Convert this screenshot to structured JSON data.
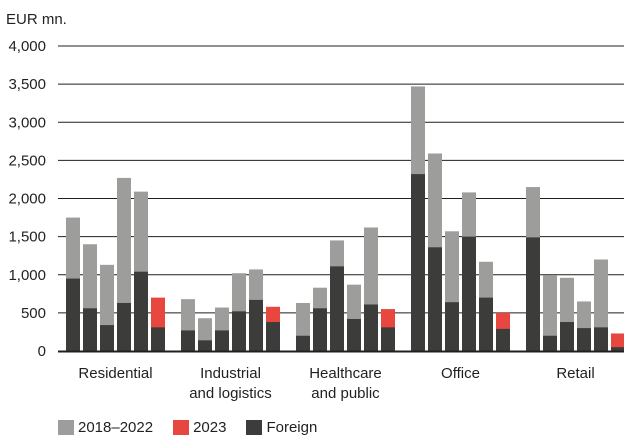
{
  "chart_data": {
    "type": "bar",
    "ylabel": "EUR mn.",
    "ylim": [
      0,
      4000
    ],
    "yticks": [
      "0",
      "500",
      "1,000",
      "1,500",
      "2,000",
      "2,500",
      "3,000",
      "3,500",
      "4,000"
    ],
    "ytick_values": [
      0,
      500,
      1000,
      1500,
      2000,
      2500,
      3000,
      3500,
      4000
    ],
    "grid": true,
    "legend_position": "bottom",
    "colors": {
      "total": "#9d9d9c",
      "highlight": "#e8473f",
      "foreign": "#3c3c3b",
      "axis": "#231f20"
    },
    "series": [
      {
        "name": "2018–2022",
        "role": "total"
      },
      {
        "name": "2023",
        "role": "highlight"
      },
      {
        "name": "Foreign",
        "role": "foreign"
      }
    ],
    "groups": [
      {
        "label": [
          "Residential"
        ],
        "bars": [
          {
            "year": 2018,
            "total": 1750,
            "foreign": 950
          },
          {
            "year": 2019,
            "total": 1400,
            "foreign": 560
          },
          {
            "year": 2020,
            "total": 1130,
            "foreign": 340
          },
          {
            "year": 2021,
            "total": 2270,
            "foreign": 630
          },
          {
            "year": 2022,
            "total": 2090,
            "foreign": 1040
          },
          {
            "year": 2023,
            "total": 700,
            "foreign": 310
          }
        ]
      },
      {
        "label": [
          "Industrial",
          "and logistics"
        ],
        "bars": [
          {
            "year": 2018,
            "total": 680,
            "foreign": 270
          },
          {
            "year": 2019,
            "total": 430,
            "foreign": 140
          },
          {
            "year": 2020,
            "total": 570,
            "foreign": 270
          },
          {
            "year": 2021,
            "total": 1020,
            "foreign": 520
          },
          {
            "year": 2022,
            "total": 1070,
            "foreign": 670
          },
          {
            "year": 2023,
            "total": 580,
            "foreign": 380
          }
        ]
      },
      {
        "label": [
          "Healthcare",
          "and public"
        ],
        "bars": [
          {
            "year": 2018,
            "total": 630,
            "foreign": 200
          },
          {
            "year": 2019,
            "total": 830,
            "foreign": 560
          },
          {
            "year": 2020,
            "total": 1450,
            "foreign": 1110
          },
          {
            "year": 2021,
            "total": 870,
            "foreign": 420
          },
          {
            "year": 2022,
            "total": 1620,
            "foreign": 610
          },
          {
            "year": 2023,
            "total": 550,
            "foreign": 310
          }
        ]
      },
      {
        "label": [
          "Office"
        ],
        "bars": [
          {
            "year": 2018,
            "total": 3470,
            "foreign": 2320
          },
          {
            "year": 2019,
            "total": 2590,
            "foreign": 1360
          },
          {
            "year": 2020,
            "total": 1570,
            "foreign": 640
          },
          {
            "year": 2021,
            "total": 2080,
            "foreign": 1500
          },
          {
            "year": 2022,
            "total": 1170,
            "foreign": 700
          },
          {
            "year": 2023,
            "total": 500,
            "foreign": 290
          }
        ]
      },
      {
        "label": [
          "Retail"
        ],
        "bars": [
          {
            "year": 2018,
            "total": 2150,
            "foreign": 1490
          },
          {
            "year": 2019,
            "total": 990,
            "foreign": 200
          },
          {
            "year": 2020,
            "total": 960,
            "foreign": 380
          },
          {
            "year": 2021,
            "total": 650,
            "foreign": 300
          },
          {
            "year": 2022,
            "total": 1200,
            "foreign": 310
          },
          {
            "year": 2023,
            "total": 230,
            "foreign": 50
          }
        ]
      }
    ]
  }
}
